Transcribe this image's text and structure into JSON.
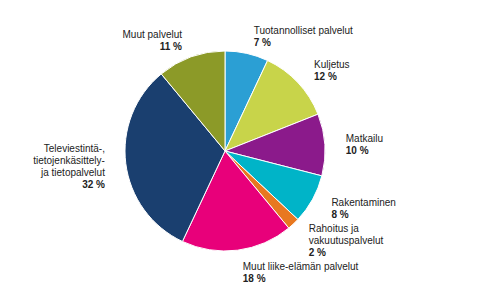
{
  "chart_data": {
    "type": "pie",
    "categories": [
      "Tuotannolliset palvelut",
      "Kuljetus",
      "Matkailu",
      "Rakentaminen",
      "Rahoitus ja\nvakuutuspalvelut",
      "Muut liike-elämän palvelut",
      "Televiestintä-,\ntietojenkäsittely-\nja tietopalvelut",
      "Muut palvelut"
    ],
    "values": [
      7,
      12,
      10,
      8,
      2,
      18,
      32,
      11
    ],
    "value_labels": [
      "7 %",
      "12 %",
      "10 %",
      "8 %",
      "2 %",
      "18 %",
      "32 %",
      "11 %"
    ],
    "colors": [
      "#2b9fd4",
      "#c8d44a",
      "#8b1a8b",
      "#00b4c8",
      "#e87820",
      "#e8007a",
      "#1a3f6f",
      "#8c9a28"
    ]
  }
}
